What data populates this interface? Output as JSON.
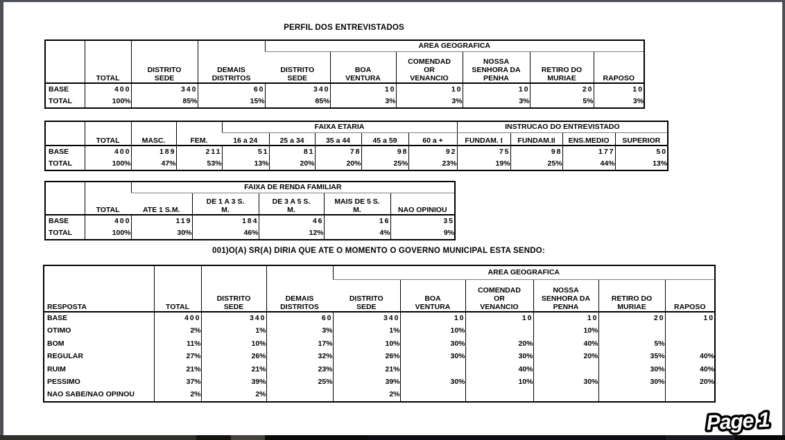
{
  "titles": {
    "perfil": "PERFIL DOS ENTREVISTADOS",
    "question": "001)O(A) SR(A) DIRIA QUE ATE O MOMENTO O GOVERNO MUNICIPAL ESTA SENDO:",
    "page_badge": "Page 1"
  },
  "tables": [
    {
      "name": "perfil-area-geografica",
      "full_cols": [
        "",
        "TOTAL",
        "DISTRITO\nSEDE",
        "DEMAIS\nDISTRITOS"
      ],
      "groups": [
        {
          "label": "AREA GEOGRAFICA",
          "cols": [
            "DISTRITO\nSEDE",
            "BOA\nVENTURA",
            "COMENDAD\nOR\nVENANCIO",
            "NOSSA\nSENHORA DA\nPENHA",
            "RETIRO DO\nMURIAE",
            "RAPOSO"
          ]
        }
      ],
      "rows": [
        {
          "label": "BASE",
          "spaced": true,
          "values": [
            "400",
            "340",
            "60",
            "340",
            "10",
            "10",
            "10",
            "20",
            "10"
          ]
        },
        {
          "label": "TOTAL",
          "values": [
            "100%",
            "85%",
            "15%",
            "85%",
            "3%",
            "3%",
            "3%",
            "5%",
            "3%"
          ]
        }
      ]
    },
    {
      "name": "perfil-sexo-idade-instrucao",
      "full_cols": [
        "",
        "TOTAL",
        "MASC.",
        "FEM."
      ],
      "groups": [
        {
          "label": "FAIXA ETARIA",
          "cols": [
            "16 a 24",
            "25 a 34",
            "35 a 44",
            "45 a 59",
            "60 a +"
          ]
        },
        {
          "label": "INSTRUCAO DO ENTREVISTADO",
          "cols": [
            "FUNDAM. I",
            "FUNDAM.II",
            "ENS.MEDIO",
            "SUPERIOR"
          ]
        }
      ],
      "rows": [
        {
          "label": "BASE",
          "spaced": true,
          "values": [
            "400",
            "189",
            "211",
            "51",
            "81",
            "78",
            "98",
            "92",
            "75",
            "98",
            "177",
            "50"
          ]
        },
        {
          "label": "TOTAL",
          "values": [
            "100%",
            "47%",
            "53%",
            "13%",
            "20%",
            "20%",
            "25%",
            "23%",
            "19%",
            "25%",
            "44%",
            "13%"
          ]
        }
      ]
    },
    {
      "name": "perfil-renda-familiar",
      "full_cols": [
        "",
        "TOTAL"
      ],
      "groups": [
        {
          "label": "FAIXA DE RENDA FAMILIAR",
          "cols": [
            "ATE 1 S.M.",
            "DE 1 A 3 S.\nM.",
            "DE 3 A 5 S.\nM.",
            "MAIS DE 5 S.\nM.",
            "NAO OPINIOU"
          ]
        }
      ],
      "rows": [
        {
          "label": "BASE",
          "spaced": true,
          "values": [
            "400",
            "119",
            "184",
            "46",
            "16",
            "35"
          ]
        },
        {
          "label": "TOTAL",
          "values": [
            "100%",
            "30%",
            "46%",
            "12%",
            "4%",
            "9%"
          ]
        }
      ]
    },
    {
      "name": "avaliacao-governo-municipal",
      "full_cols": [
        "RESPOSTA",
        "TOTAL",
        "DISTRITO\nSEDE",
        "DEMAIS\nDISTRITOS"
      ],
      "groups": [
        {
          "label": "AREA GEOGRAFICA",
          "cols": [
            "DISTRITO\nSEDE",
            "BOA\nVENTURA",
            "COMENDAD\nOR\nVENANCIO",
            "NOSSA\nSENHORA DA\nPENHA",
            "RETIRO DO\nMURIAE",
            "RAPOSO"
          ]
        }
      ],
      "rows": [
        {
          "label": "BASE",
          "spaced": true,
          "values": [
            "400",
            "340",
            "60",
            "340",
            "10",
            "10",
            "10",
            "20",
            "10"
          ]
        },
        {
          "label": "OTIMO",
          "values": [
            "2%",
            "1%",
            "3%",
            "1%",
            "10%",
            "",
            "10%",
            "",
            ""
          ]
        },
        {
          "label": "BOM",
          "values": [
            "11%",
            "10%",
            "17%",
            "10%",
            "30%",
            "20%",
            "40%",
            "5%",
            ""
          ]
        },
        {
          "label": "REGULAR",
          "values": [
            "27%",
            "26%",
            "32%",
            "26%",
            "30%",
            "30%",
            "20%",
            "35%",
            "40%"
          ]
        },
        {
          "label": "RUIM",
          "values": [
            "21%",
            "21%",
            "23%",
            "21%",
            "",
            "40%",
            "",
            "30%",
            "40%"
          ]
        },
        {
          "label": "PESSIMO",
          "values": [
            "37%",
            "39%",
            "25%",
            "39%",
            "30%",
            "10%",
            "30%",
            "30%",
            "20%"
          ]
        },
        {
          "label": "NAO SABE/NAO OPINOU",
          "values": [
            "2%",
            "2%",
            "",
            "2%",
            "",
            "",
            "",
            "",
            ""
          ]
        }
      ]
    }
  ]
}
